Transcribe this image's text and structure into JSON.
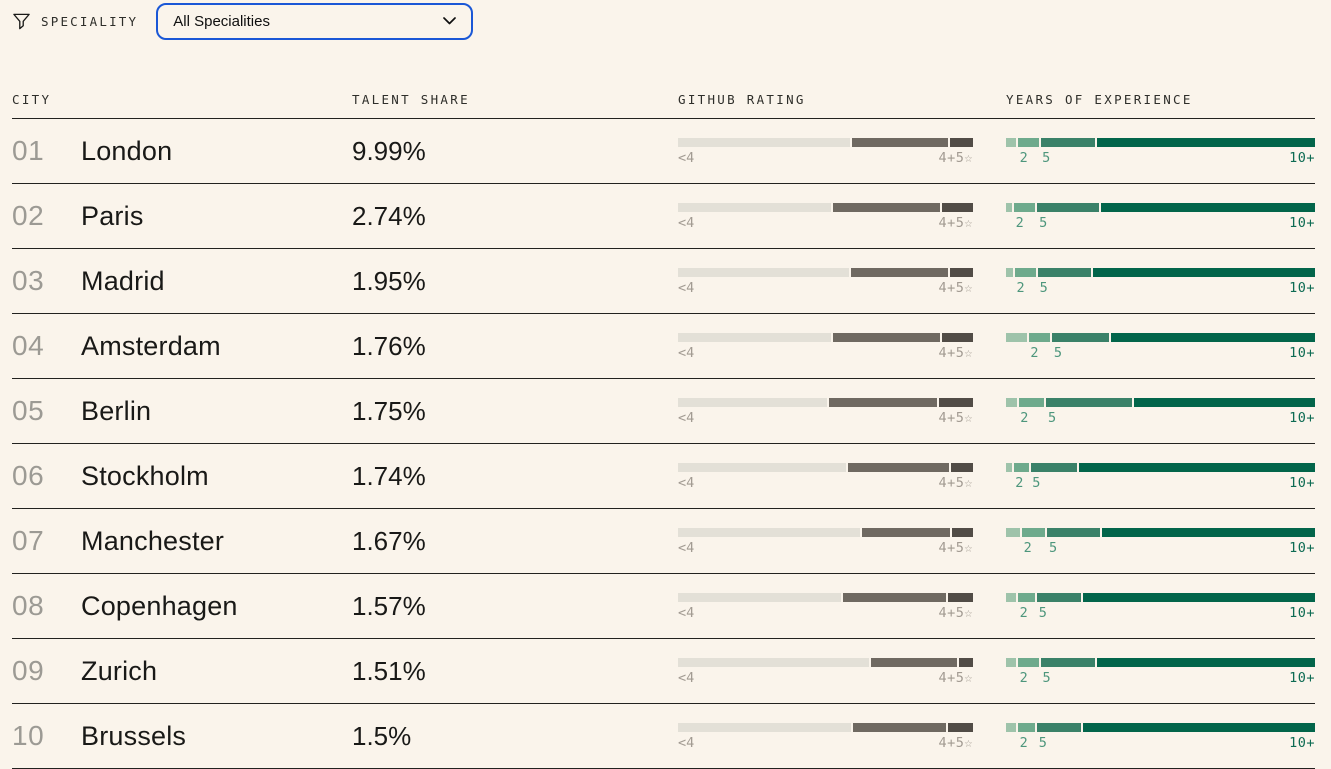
{
  "filter": {
    "label": "SPECIALITY",
    "dropdown_value": "All Specialities",
    "icons": {
      "funnel": "filter-funnel",
      "chevron": "chevron-down"
    }
  },
  "table": {
    "columns": {
      "city": "CITY",
      "talent_share": "TALENT SHARE",
      "github_rating": "GITHUB RATING",
      "experience": "YEARS OF EXPERIENCE"
    },
    "github_scale": {
      "left_label": "<4",
      "right_label": "4+5",
      "star": "☆"
    },
    "experience_scale": {
      "label_2": "2",
      "label_5": "5",
      "label_10": "10+"
    },
    "rows": [
      {
        "rank": "01",
        "city": "London",
        "share": "9.99%",
        "github": [
          58.3,
          32.5,
          7.8
        ],
        "experience": [
          3.2,
          6.7,
          17.6,
          69.9
        ]
      },
      {
        "rank": "02",
        "city": "Paris",
        "share": "2.74%",
        "github": [
          51.9,
          36.3,
          10.5
        ],
        "experience": [
          1.9,
          7.0,
          20.0,
          69.5
        ]
      },
      {
        "rank": "03",
        "city": "Madrid",
        "share": "1.95%",
        "github": [
          58.0,
          32.9,
          7.8
        ],
        "experience": [
          2.2,
          6.9,
          17.0,
          71.8
        ]
      },
      {
        "rank": "04",
        "city": "Amsterdam",
        "share": "1.76%",
        "github": [
          51.9,
          36.3,
          10.5
        ],
        "experience": [
          6.7,
          7.0,
          18.3,
          65.8
        ]
      },
      {
        "rank": "05",
        "city": "Berlin",
        "share": "1.75%",
        "github": [
          50.5,
          36.6,
          11.5
        ],
        "experience": [
          3.4,
          8.4,
          27.7,
          58.4
        ]
      },
      {
        "rank": "06",
        "city": "Stockholm",
        "share": "1.74%",
        "github": [
          57.0,
          34.2,
          7.8
        ],
        "experience": [
          1.8,
          4.9,
          15.1,
          76.6
        ]
      },
      {
        "rank": "07",
        "city": "Manchester",
        "share": "1.67%",
        "github": [
          61.7,
          29.8,
          7.1
        ],
        "experience": [
          4.5,
          7.6,
          17.0,
          68.9
        ]
      },
      {
        "rank": "08",
        "city": "Copenhagen",
        "share": "1.57%",
        "github": [
          55.3,
          34.9,
          8.5
        ],
        "experience": [
          3.2,
          5.6,
          14.2,
          74.9
        ]
      },
      {
        "rank": "09",
        "city": "Zurich",
        "share": "1.51%",
        "github": [
          64.7,
          29.2,
          4.7
        ],
        "experience": [
          3.2,
          6.8,
          17.5,
          70.5
        ]
      },
      {
        "rank": "10",
        "city": "Brussels",
        "share": "1.5%",
        "github": [
          58.6,
          31.5,
          8.5
        ],
        "experience": [
          3.2,
          5.6,
          14.2,
          75.0
        ]
      }
    ]
  },
  "colors": {
    "background": "#faf4eb",
    "text": "#191917",
    "rank": "#9c9a94",
    "divider": "#22221f",
    "dropdown_border": "#1a57d6",
    "github_segments": [
      "#e3e0d7",
      "#6f6961",
      "#514c46"
    ],
    "github_labels": "#a29b92",
    "experience_segments": [
      "#9ec3aa",
      "#6eaa8c",
      "#3a8168",
      "#02654a"
    ],
    "experience_label_green": "#4d967c",
    "experience_label_dark": "#0d6b53"
  }
}
